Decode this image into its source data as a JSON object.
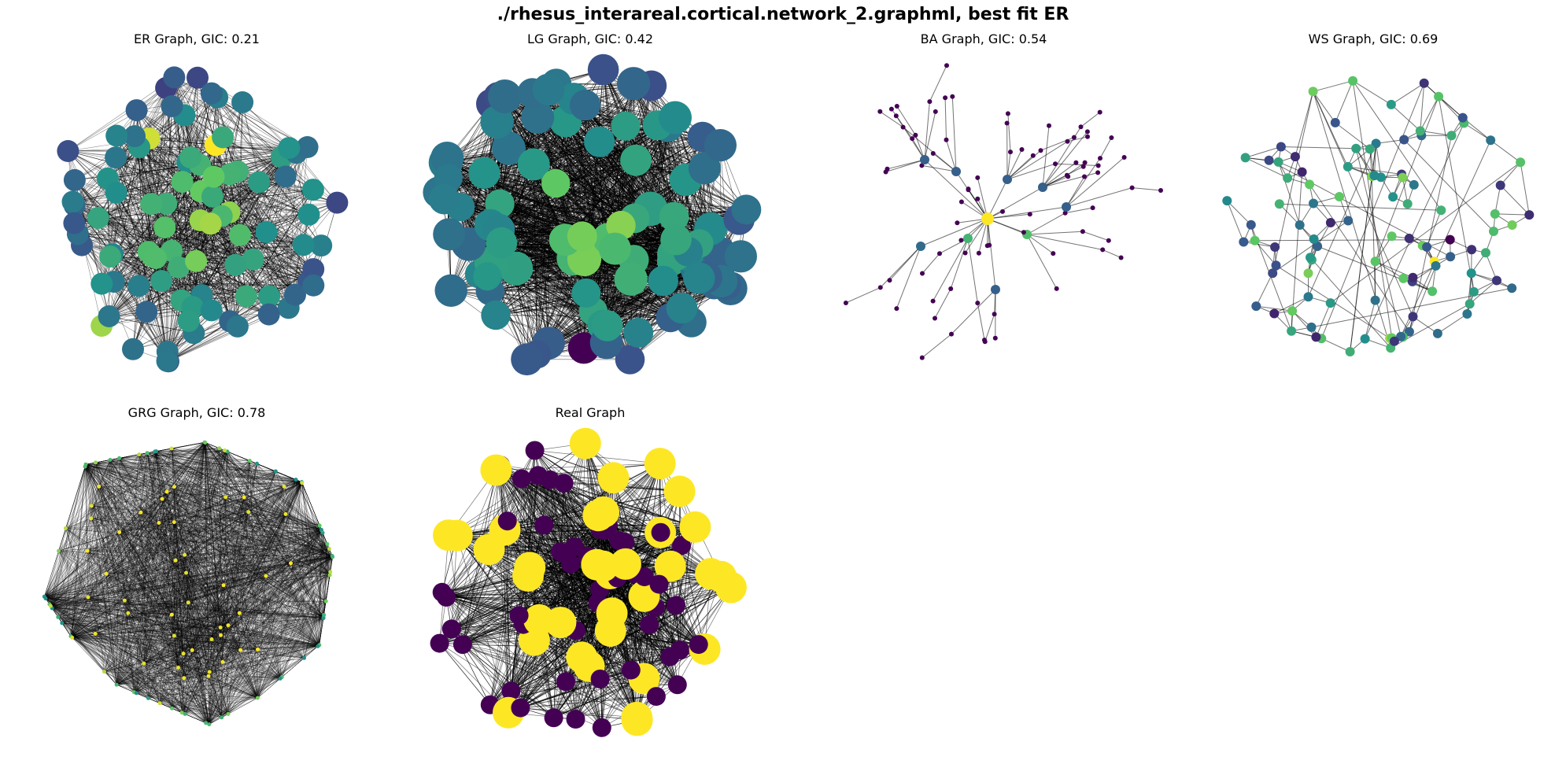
{
  "figure": {
    "title": "./rhesus_interareal.cortical.network_2.graphml, best fit ER"
  },
  "colormap": {
    "name": "viridis",
    "stops": [
      "#440154",
      "#3b528b",
      "#21918c",
      "#5ec962",
      "#fde725"
    ]
  },
  "edge_color": "#000000",
  "panels": [
    {
      "id": "er",
      "title": "ER Graph, GIC: 0.21"
    },
    {
      "id": "lg",
      "title": "LG Graph, GIC: 0.42"
    },
    {
      "id": "ba",
      "title": "BA Graph, GIC: 0.54"
    },
    {
      "id": "ws",
      "title": "WS Graph, GIC: 0.69"
    },
    {
      "id": "grg",
      "title": "GRG Graph, GIC: 0.78"
    },
    {
      "id": "real",
      "title": "Real Graph"
    }
  ]
}
